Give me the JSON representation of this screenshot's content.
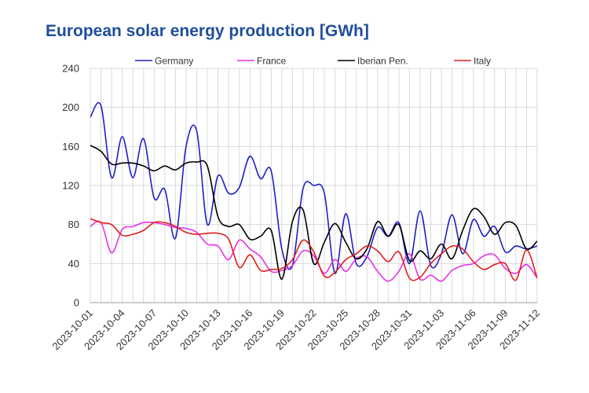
{
  "chart_data": {
    "type": "line",
    "title": "European solar energy production [GWh]",
    "xlabel": "",
    "ylabel": "",
    "ylim": [
      0,
      240
    ],
    "yticks": [
      0,
      40,
      80,
      120,
      160,
      200,
      240
    ],
    "grid": true,
    "legend_position": "top",
    "x": [
      "2023-10-01",
      "2023-10-02",
      "2023-10-03",
      "2023-10-04",
      "2023-10-05",
      "2023-10-06",
      "2023-10-07",
      "2023-10-08",
      "2023-10-09",
      "2023-10-10",
      "2023-10-11",
      "2023-10-12",
      "2023-10-13",
      "2023-10-14",
      "2023-10-15",
      "2023-10-16",
      "2023-10-17",
      "2023-10-18",
      "2023-10-19",
      "2023-10-20",
      "2023-10-21",
      "2023-10-22",
      "2023-10-23",
      "2023-10-24",
      "2023-10-25",
      "2023-10-26",
      "2023-10-27",
      "2023-10-28",
      "2023-10-29",
      "2023-10-30",
      "2023-10-31",
      "2023-11-01",
      "2023-11-02",
      "2023-11-03",
      "2023-11-04",
      "2023-11-05",
      "2023-11-06",
      "2023-11-07",
      "2023-11-08",
      "2023-11-09",
      "2023-11-10",
      "2023-11-11",
      "2023-11-12"
    ],
    "xtick_labels": [
      "2023-10-01",
      "2023-10-04",
      "2023-10-07",
      "2023-10-10",
      "2023-10-13",
      "2023-10-16",
      "2023-10-19",
      "2023-10-22",
      "2023-10-25",
      "2023-10-28",
      "2023-10-31",
      "2023-11-03",
      "2023-11-06",
      "2023-11-09",
      "2023-11-12"
    ],
    "xtick_step": 3,
    "series": [
      {
        "name": "Germany",
        "color": "#1f1fc8",
        "values": [
          190,
          202,
          128,
          170,
          128,
          168,
          107,
          116,
          66,
          160,
          176,
          80,
          130,
          112,
          118,
          150,
          127,
          135,
          55,
          38,
          117,
          120,
          112,
          30,
          91,
          40,
          47,
          77,
          68,
          82,
          40,
          94,
          38,
          50,
          90,
          50,
          85,
          68,
          78,
          52,
          58,
          55,
          58
        ]
      },
      {
        "name": "France",
        "color": "#e632e6",
        "values": [
          78,
          82,
          51,
          75,
          78,
          82,
          82,
          80,
          77,
          76,
          72,
          60,
          58,
          44,
          64,
          55,
          47,
          32,
          33,
          38,
          53,
          48,
          30,
          44,
          32,
          45,
          47,
          32,
          22,
          32,
          50,
          24,
          28,
          22,
          33,
          38,
          40,
          48,
          49,
          35,
          30,
          39,
          25
        ]
      },
      {
        "name": "Iberian Pen.",
        "color": "#000000",
        "values": [
          161,
          155,
          142,
          143,
          143,
          140,
          135,
          140,
          136,
          143,
          144,
          140,
          88,
          78,
          80,
          65,
          68,
          74,
          24,
          83,
          95,
          40,
          62,
          81,
          62,
          45,
          55,
          83,
          68,
          80,
          43,
          53,
          45,
          60,
          45,
          74,
          96,
          88,
          70,
          82,
          79,
          55,
          63
        ]
      },
      {
        "name": "Italy",
        "color": "#e02020",
        "values": [
          86,
          82,
          80,
          69,
          70,
          74,
          82,
          82,
          78,
          72,
          70,
          71,
          71,
          65,
          36,
          49,
          33,
          34,
          35,
          44,
          64,
          52,
          27,
          31,
          44,
          50,
          58,
          53,
          42,
          52,
          25,
          26,
          40,
          50,
          58,
          55,
          42,
          34,
          39,
          40,
          23,
          54,
          25
        ]
      }
    ]
  }
}
